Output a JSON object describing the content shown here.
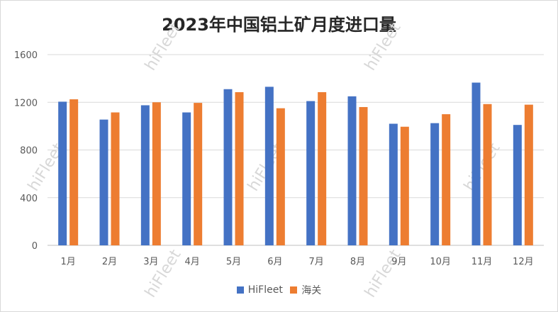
{
  "chart_data": {
    "type": "bar",
    "title": "2023年中国铝土矿月度进口量",
    "categories": [
      "1月",
      "2月",
      "3月",
      "4月",
      "5月",
      "6月",
      "7月",
      "8月",
      "9月",
      "10月",
      "11月",
      "12月"
    ],
    "series": [
      {
        "name": "HiFleet",
        "color": "#4472c4",
        "values": [
          1205,
          1055,
          1175,
          1115,
          1310,
          1330,
          1210,
          1250,
          1020,
          1025,
          1365,
          1010
        ]
      },
      {
        "name": "海关",
        "color": "#ed7d31",
        "values": [
          1225,
          1115,
          1200,
          1195,
          1285,
          1150,
          1285,
          1160,
          995,
          1100,
          1185,
          1180
        ]
      }
    ],
    "xlabel": "",
    "ylabel": "",
    "ylim": [
      0,
      1600
    ],
    "yticks": [
      0,
      400,
      800,
      1200,
      1600
    ],
    "grid": true,
    "legend_position": "bottom"
  },
  "watermark_text": "hiFleet"
}
